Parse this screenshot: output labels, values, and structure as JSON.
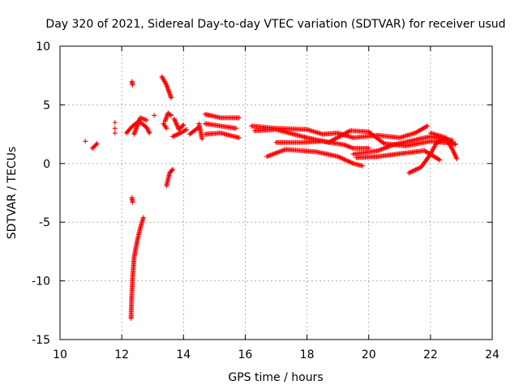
{
  "chart_data": {
    "type": "scatter",
    "title": "Day 320 of 2021, Sidereal Day-to-day VTEC variation (SDTVAR) for receiver usud",
    "xlabel": "GPS time / hours",
    "ylabel": "SDTVAR / TECUs",
    "xlim": [
      10,
      24
    ],
    "ylim": [
      -15,
      10
    ],
    "xticks": [
      10,
      12,
      14,
      16,
      18,
      20,
      22,
      24
    ],
    "yticks": [
      -15,
      -10,
      -5,
      0,
      5,
      10
    ],
    "grid": true,
    "marker": "+",
    "color": "#ff0000",
    "series": [
      {
        "name": "scattered points",
        "points": [
          [
            10.82,
            1.9
          ],
          [
            11.78,
            3.5
          ],
          [
            11.78,
            3.0
          ],
          [
            11.78,
            2.6
          ],
          [
            13.05,
            4.1
          ]
        ]
      },
      {
        "name": "arc 1",
        "points": [
          [
            11.05,
            1.3
          ],
          [
            11.2,
            1.7
          ]
        ]
      },
      {
        "name": "arc 2",
        "points": [
          [
            12.15,
            2.6
          ],
          [
            12.35,
            3.2
          ],
          [
            12.55,
            3.6
          ],
          [
            12.8,
            3.1
          ],
          [
            12.9,
            2.6
          ]
        ]
      },
      {
        "name": "arc 3",
        "points": [
          [
            12.4,
            2.5
          ],
          [
            12.6,
            3.9
          ],
          [
            12.8,
            3.7
          ]
        ]
      },
      {
        "name": "arc 4",
        "points": [
          [
            12.3,
            -13.2
          ],
          [
            12.32,
            -11.5
          ],
          [
            12.35,
            -9.8
          ],
          [
            12.4,
            -8.0
          ],
          [
            12.5,
            -6.6
          ],
          [
            12.6,
            -5.5
          ],
          [
            12.7,
            -4.6
          ]
        ]
      },
      {
        "name": "arc 5",
        "points": [
          [
            12.33,
            7.0
          ],
          [
            12.35,
            6.7
          ]
        ]
      },
      {
        "name": "arc 6",
        "points": [
          [
            12.33,
            -2.9
          ],
          [
            12.35,
            -3.3
          ]
        ]
      },
      {
        "name": "arc 7",
        "points": [
          [
            13.3,
            7.4
          ],
          [
            13.45,
            6.7
          ],
          [
            13.6,
            5.6
          ]
        ]
      },
      {
        "name": "arc 8",
        "points": [
          [
            13.4,
            3.6
          ],
          [
            13.5,
            4.3
          ],
          [
            13.6,
            4.1
          ]
        ]
      },
      {
        "name": "arc 9",
        "points": [
          [
            13.35,
            3.4
          ],
          [
            13.45,
            3.0
          ]
        ]
      },
      {
        "name": "arc 10",
        "points": [
          [
            13.45,
            -1.9
          ],
          [
            13.55,
            -0.8
          ],
          [
            13.65,
            -0.5
          ]
        ]
      },
      {
        "name": "arc 11",
        "points": [
          [
            13.7,
            3.8
          ],
          [
            13.85,
            2.9
          ],
          [
            14.0,
            3.3
          ]
        ]
      },
      {
        "name": "arc 12",
        "points": [
          [
            13.65,
            2.3
          ],
          [
            13.9,
            2.6
          ],
          [
            14.1,
            2.9
          ]
        ]
      },
      {
        "name": "arc 13",
        "points": [
          [
            14.2,
            2.5
          ],
          [
            14.4,
            2.9
          ],
          [
            14.5,
            3.1
          ]
        ]
      },
      {
        "name": "arc 14",
        "points": [
          [
            14.5,
            3.4
          ],
          [
            14.6,
            2.1
          ]
        ]
      },
      {
        "name": "arc 15",
        "points": [
          [
            14.7,
            4.2
          ],
          [
            15.2,
            3.9
          ],
          [
            15.8,
            3.9
          ]
        ]
      },
      {
        "name": "arc 16",
        "points": [
          [
            14.7,
            3.4
          ],
          [
            15.2,
            3.2
          ],
          [
            15.7,
            3.0
          ]
        ]
      },
      {
        "name": "arc 17",
        "points": [
          [
            14.7,
            2.5
          ],
          [
            15.2,
            2.6
          ],
          [
            15.8,
            2.2
          ]
        ]
      },
      {
        "name": "arc 18",
        "points": [
          [
            16.2,
            3.2
          ],
          [
            17.0,
            3.0
          ],
          [
            18.0,
            2.9
          ],
          [
            18.5,
            2.5
          ],
          [
            19.0,
            2.6
          ],
          [
            19.5,
            2.2
          ],
          [
            20.3,
            2.4
          ],
          [
            21.0,
            2.2
          ],
          [
            21.5,
            2.6
          ],
          [
            21.9,
            3.2
          ]
        ]
      },
      {
        "name": "arc 19",
        "points": [
          [
            16.3,
            2.8
          ],
          [
            17.0,
            2.9
          ],
          [
            18.0,
            2.2
          ],
          [
            18.7,
            1.8
          ],
          [
            19.4,
            2.8
          ],
          [
            20.0,
            2.7
          ],
          [
            20.5,
            1.7
          ],
          [
            21.2,
            1.5
          ],
          [
            22.0,
            1.9
          ],
          [
            22.8,
            1.7
          ]
        ]
      },
      {
        "name": "arc 20",
        "points": [
          [
            16.7,
            0.6
          ],
          [
            17.3,
            1.2
          ],
          [
            18.3,
            1.0
          ],
          [
            19.0,
            0.6
          ],
          [
            19.5,
            0.0
          ],
          [
            19.8,
            -0.2
          ]
        ]
      },
      {
        "name": "arc 21",
        "points": [
          [
            17.0,
            1.8
          ],
          [
            17.8,
            1.8
          ],
          [
            18.5,
            1.9
          ],
          [
            19.2,
            1.6
          ],
          [
            19.5,
            1.3
          ],
          [
            20.0,
            1.3
          ]
        ]
      },
      {
        "name": "arc 22",
        "points": [
          [
            19.5,
            0.8
          ],
          [
            20.3,
            1.1
          ],
          [
            20.8,
            1.6
          ],
          [
            21.3,
            1.9
          ],
          [
            22.0,
            2.3
          ],
          [
            22.7,
            2.0
          ]
        ]
      },
      {
        "name": "arc 23",
        "points": [
          [
            19.6,
            0.5
          ],
          [
            20.3,
            0.6
          ],
          [
            21.2,
            0.9
          ],
          [
            21.8,
            1.1
          ],
          [
            22.3,
            0.3
          ]
        ]
      },
      {
        "name": "arc 24",
        "points": [
          [
            21.3,
            -0.8
          ],
          [
            21.7,
            -0.3
          ],
          [
            22.0,
            0.8
          ],
          [
            22.2,
            1.8
          ],
          [
            22.5,
            2.1
          ],
          [
            22.8,
            1.6
          ]
        ]
      },
      {
        "name": "arc 25",
        "points": [
          [
            22.0,
            2.6
          ],
          [
            22.5,
            2.2
          ],
          [
            22.75,
            1.0
          ],
          [
            22.85,
            0.4
          ]
        ]
      }
    ]
  }
}
